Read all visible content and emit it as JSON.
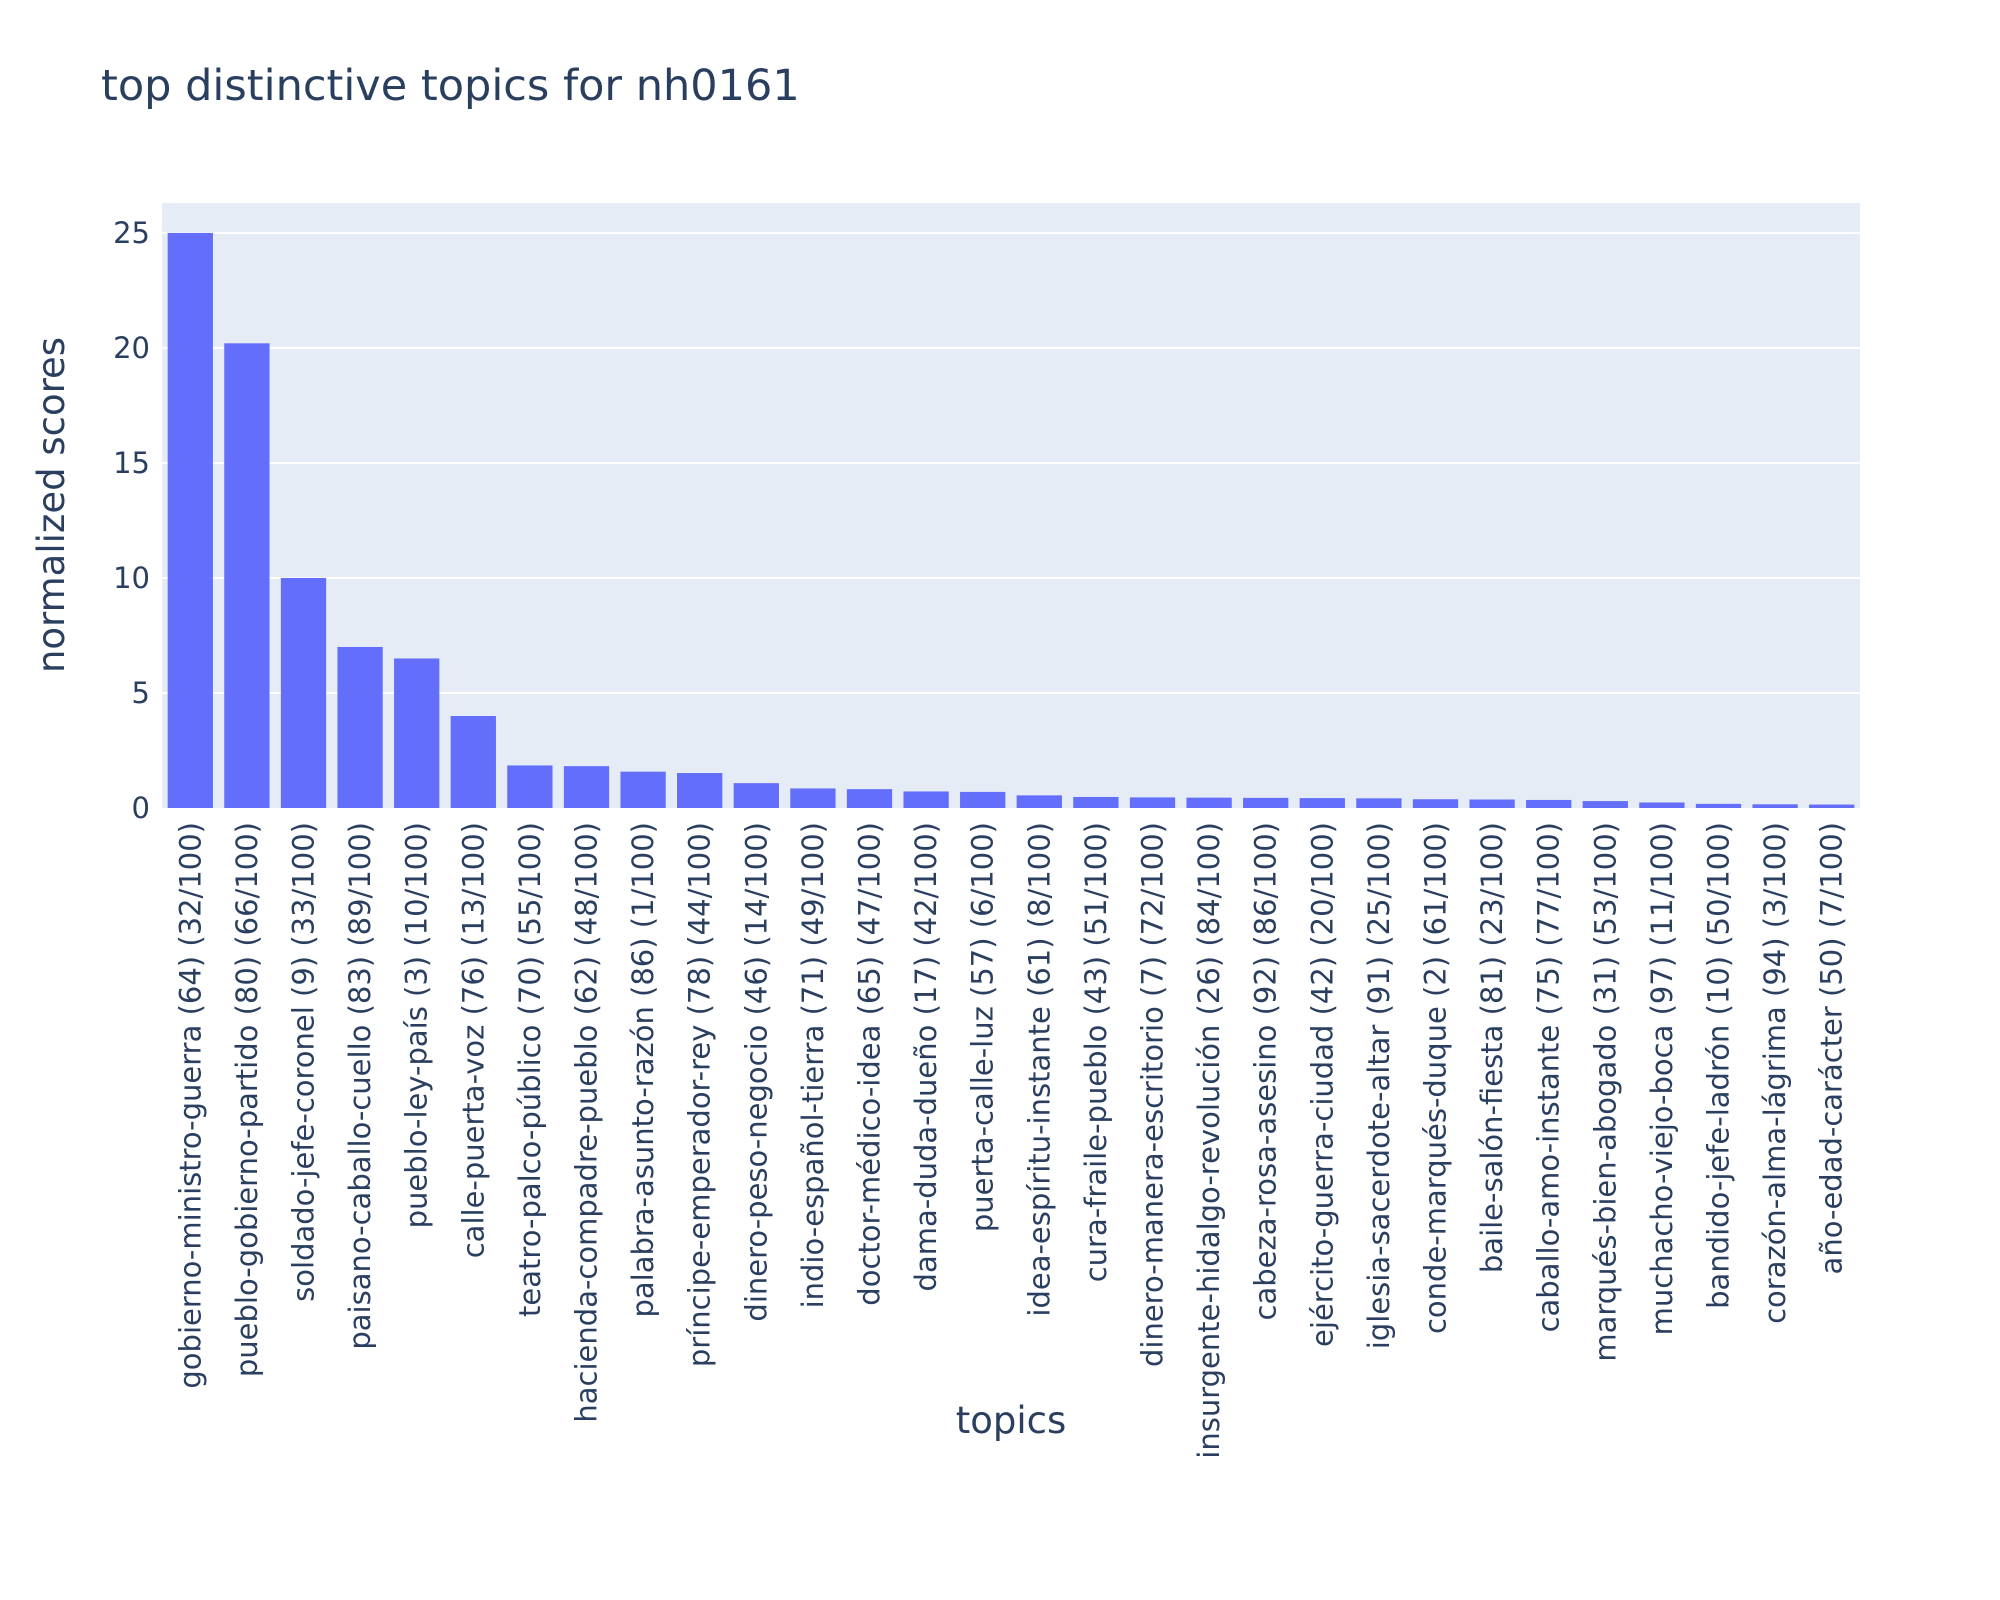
{
  "chart_data": {
    "type": "bar",
    "title": "top distinctive topics for nh0161",
    "xlabel": "topics",
    "ylabel": "normalized scores",
    "ylim": [
      0,
      26.3
    ],
    "yticks": [
      0,
      5,
      10,
      15,
      20,
      25
    ],
    "grid": true,
    "legend": "none",
    "colors": {
      "bar": "#636efa",
      "plot_bg": "#e5ecf6",
      "grid": "#ffffff",
      "text": "#2a3f5f"
    },
    "categories": [
      "gobierno-ministro-guerra (64) (32/100)",
      "pueblo-gobierno-partido (80) (66/100)",
      "soldado-jefe-coronel (9) (33/100)",
      "paisano-caballo-cuello (83) (89/100)",
      "pueblo-ley-país (3) (10/100)",
      "calle-puerta-voz (76) (13/100)",
      "teatro-palco-público (70) (55/100)",
      "hacienda-compadre-pueblo (62) (48/100)",
      "palabra-asunto-razón (86) (1/100)",
      "príncipe-emperador-rey (78) (44/100)",
      "dinero-peso-negocio (46) (14/100)",
      "indio-español-tierra (71) (49/100)",
      "doctor-médico-idea (65) (47/100)",
      "dama-duda-dueño (17) (42/100)",
      "puerta-calle-luz (57) (6/100)",
      "idea-espíritu-instante (61) (8/100)",
      "cura-fraile-pueblo (43) (51/100)",
      "dinero-manera-escritorio (7) (72/100)",
      "insurgente-hidalgo-revolución (26) (84/100)",
      "cabeza-rosa-asesino (92) (86/100)",
      "ejército-guerra-ciudad (42) (20/100)",
      "iglesia-sacerdote-altar (91) (25/100)",
      "conde-marqués-duque (2) (61/100)",
      "baile-salón-fiesta (81) (23/100)",
      "caballo-amo-instante (75) (77/100)",
      "marqués-bien-abogado (31) (53/100)",
      "muchacho-viejo-boca (97) (11/100)",
      "bandido-jefe-ladrón (10) (50/100)",
      "corazón-alma-lágrima (94) (3/100)",
      "año-edad-carácter (50) (7/100)"
    ],
    "values": [
      25.0,
      20.2,
      10.0,
      7.0,
      6.5,
      4.0,
      1.85,
      1.82,
      1.58,
      1.52,
      1.08,
      0.85,
      0.82,
      0.72,
      0.7,
      0.55,
      0.48,
      0.46,
      0.45,
      0.44,
      0.43,
      0.42,
      0.38,
      0.37,
      0.35,
      0.3,
      0.24,
      0.18,
      0.16,
      0.15
    ]
  }
}
